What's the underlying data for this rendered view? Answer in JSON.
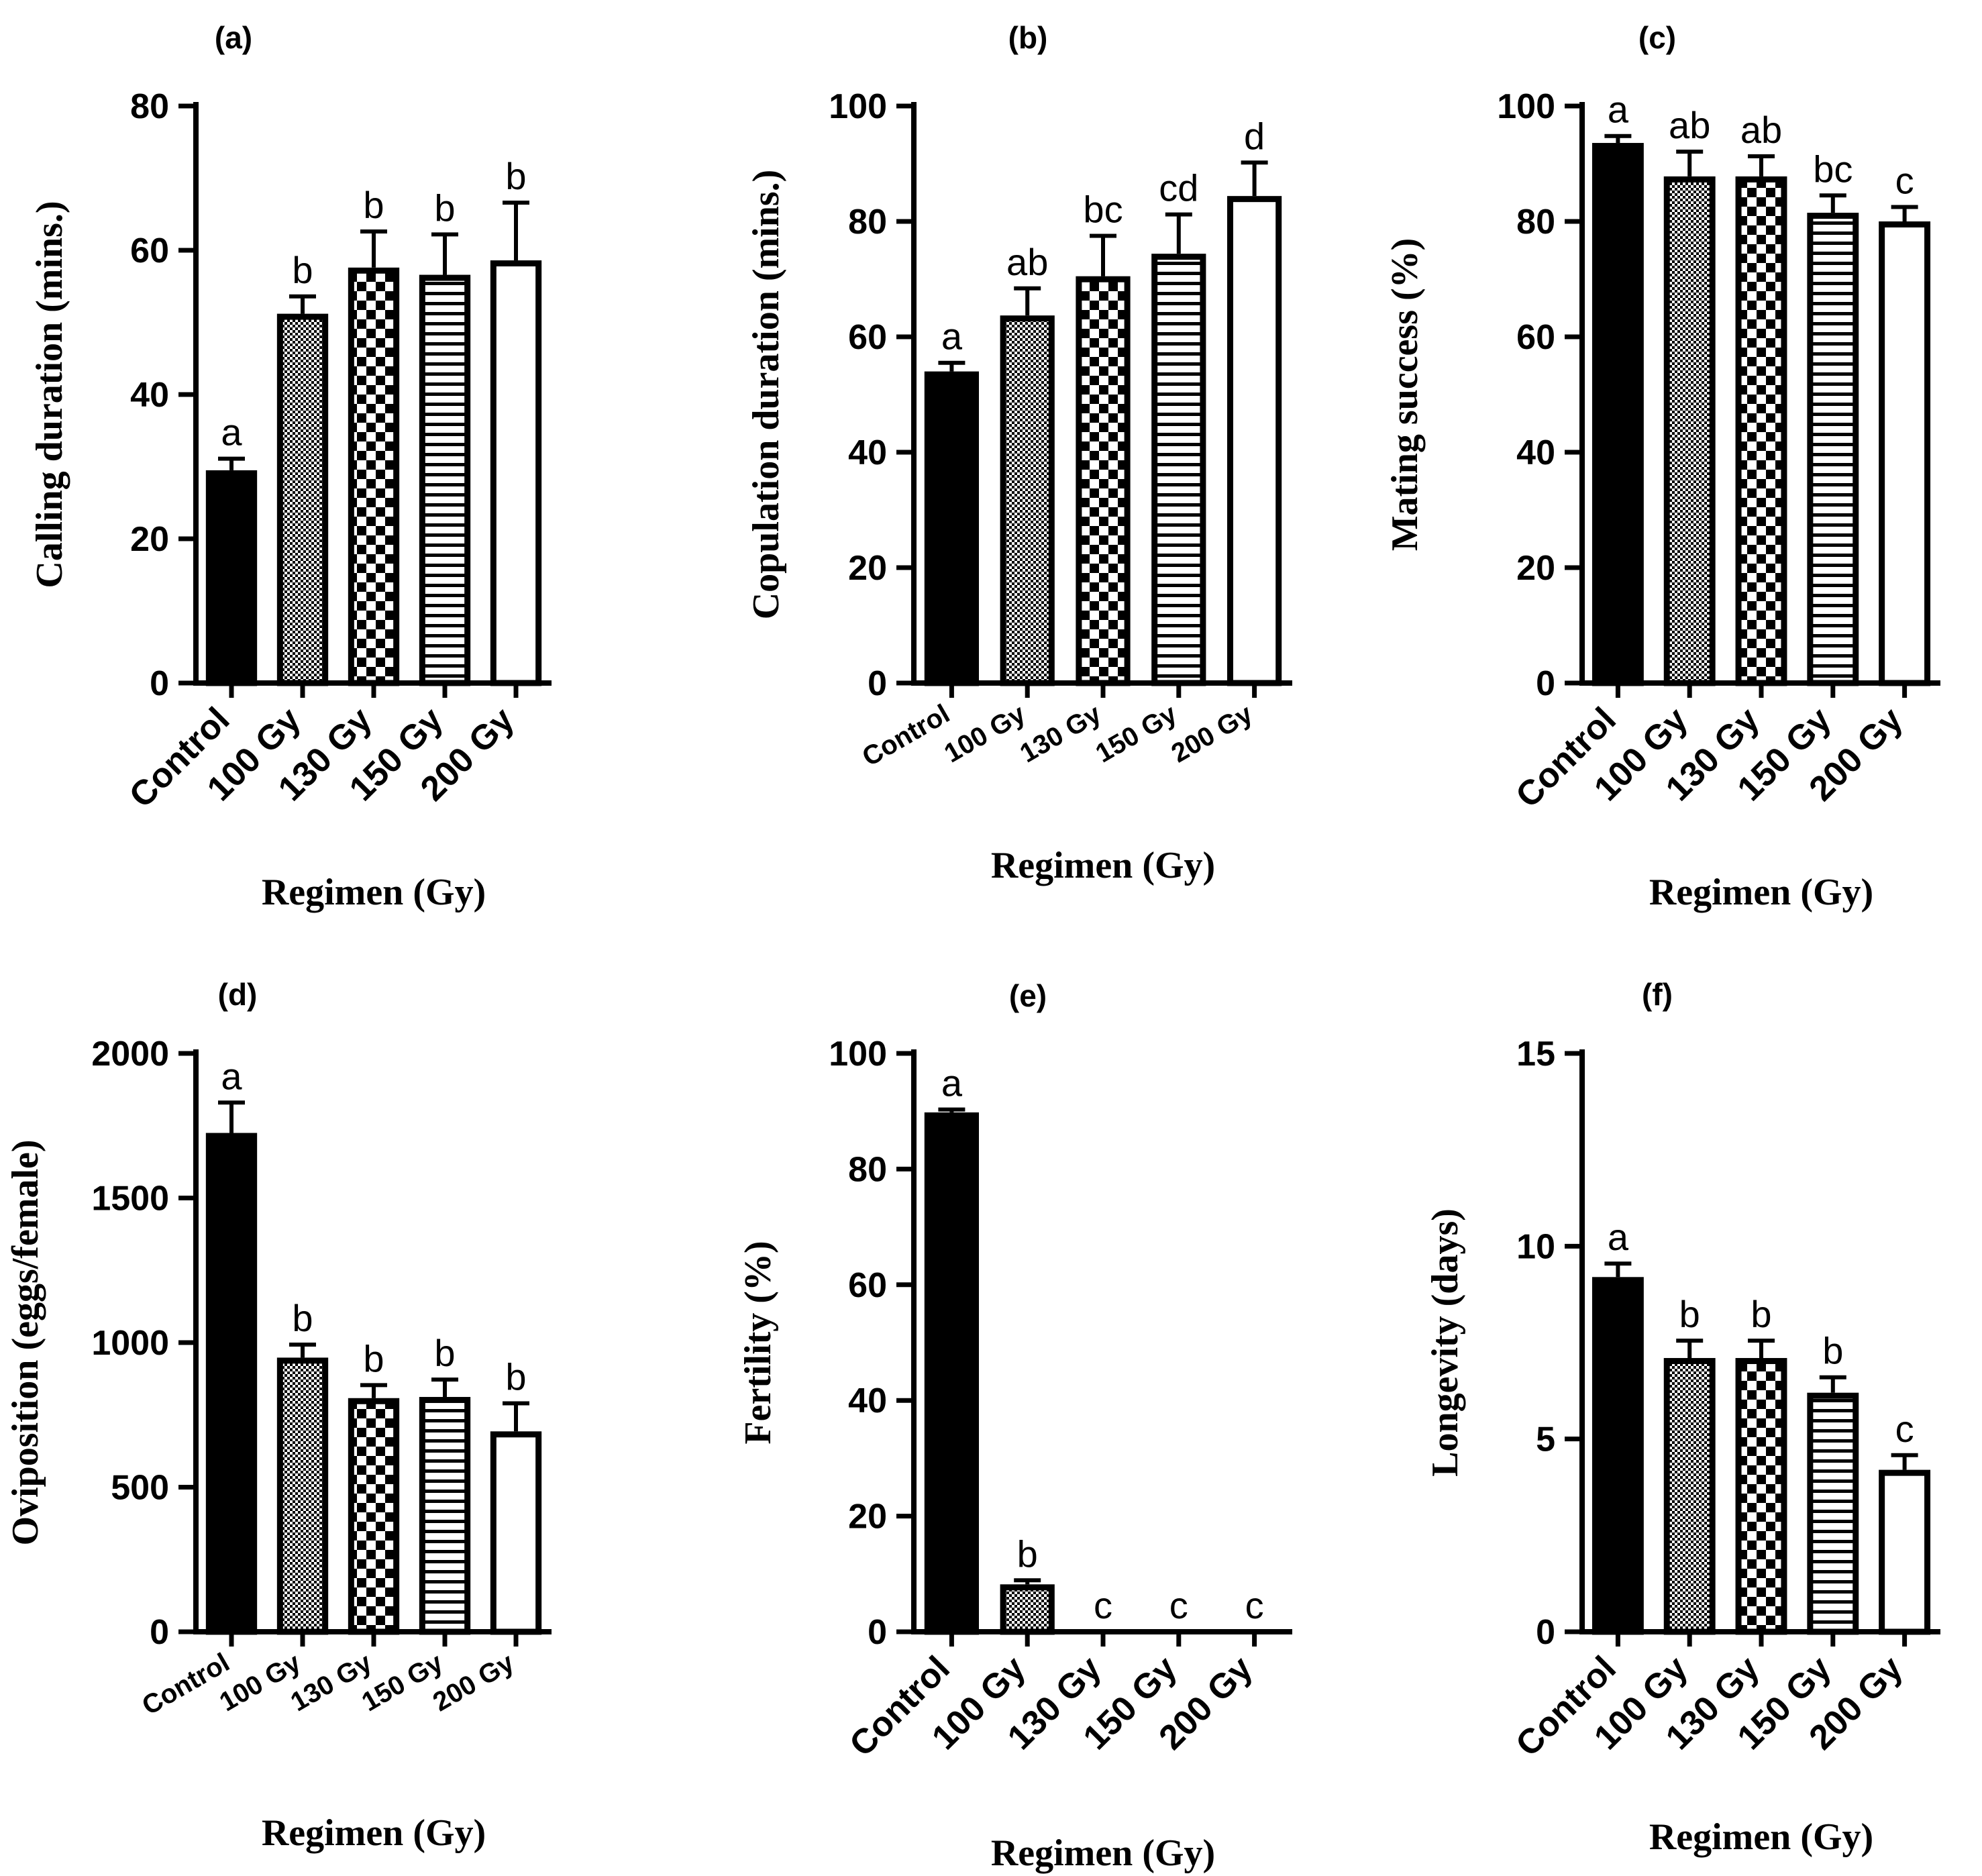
{
  "colors": {
    "ink": "#000000",
    "paper": "#ffffff"
  },
  "chart_data": [
    {
      "panel": "(a)",
      "type": "bar",
      "categories": [
        "Control",
        "100 Gy",
        "130 Gy",
        "150 Gy",
        "200 Gy"
      ],
      "values": [
        29.5,
        51.2,
        57.6,
        56.6,
        58.6
      ],
      "errors": [
        1.6,
        2.4,
        5.0,
        5.6,
        8.0
      ],
      "significance": [
        "a",
        "b",
        "b",
        "b",
        "b"
      ],
      "patterns": [
        "solid",
        "fine-check",
        "checker",
        "hstripe",
        "none"
      ],
      "xlabel": "Regimen (Gy)",
      "ylabel": "Calling duration (mins.)",
      "ylim": [
        0,
        80
      ],
      "yticks": [
        "0",
        "20",
        "40",
        "60",
        "80"
      ]
    },
    {
      "panel": "(b)",
      "type": "bar",
      "categories": [
        "Control",
        "100 Gy",
        "130 Gy",
        "150 Gy",
        "200 Gy"
      ],
      "values": [
        54,
        63.7,
        70.5,
        74.4,
        84.4
      ],
      "errors": [
        1.5,
        4.7,
        7.0,
        6.8,
        5.8
      ],
      "significance": [
        "a",
        "ab",
        "bc",
        "cd",
        "d"
      ],
      "patterns": [
        "solid",
        "fine-check",
        "checker",
        "hstripe",
        "none"
      ],
      "xlabel": "Regimen (Gy)",
      "ylabel": "Copulation duration (mins.)",
      "ylim": [
        0,
        100
      ],
      "yticks": [
        "0",
        "20",
        "40",
        "60",
        "80",
        "100"
      ]
    },
    {
      "panel": "(c)",
      "type": "bar",
      "categories": [
        "Control",
        "100 Gy",
        "130 Gy",
        "150 Gy",
        "200 Gy"
      ],
      "values": [
        93.6,
        87.8,
        87.8,
        81.5,
        80
      ],
      "errors": [
        1.2,
        4.3,
        3.5,
        3.0,
        2.5
      ],
      "significance": [
        "a",
        "ab",
        "ab",
        "bc",
        "c"
      ],
      "patterns": [
        "solid",
        "fine-check",
        "checker",
        "hstripe",
        "none"
      ],
      "xlabel": "Regimen (Gy)",
      "ylabel": "Mating success (%)",
      "ylim": [
        0,
        100
      ],
      "yticks": [
        "0",
        "20",
        "40",
        "60",
        "80",
        "100"
      ]
    },
    {
      "panel": "(d)",
      "type": "bar",
      "categories": [
        "Control",
        "100 Gy",
        "130 Gy",
        "150 Gy",
        "200 Gy"
      ],
      "values": [
        1725,
        948,
        808,
        812,
        693
      ],
      "errors": [
        105,
        45,
        45,
        60,
        97
      ],
      "significance": [
        "a",
        "b",
        "b",
        "b",
        "b"
      ],
      "patterns": [
        "solid",
        "fine-check",
        "checker",
        "hstripe",
        "none"
      ],
      "xlabel": "Regimen (Gy)",
      "ylabel": "Oviposition (eggs/female)",
      "ylim": [
        0,
        2000
      ],
      "yticks": [
        "0",
        "500",
        "1000",
        "1500",
        "2000"
      ]
    },
    {
      "panel": "(e)",
      "type": "bar",
      "categories": [
        "Control",
        "100 Gy",
        "130 Gy",
        "150 Gy",
        "200 Gy"
      ],
      "values": [
        89.8,
        8.2,
        0,
        0,
        0
      ],
      "errors": [
        0.5,
        0.7,
        0,
        0,
        0
      ],
      "significance": [
        "a",
        "b",
        "c",
        "c",
        "c"
      ],
      "patterns": [
        "solid",
        "fine-check",
        "checker",
        "hstripe",
        "none"
      ],
      "xlabel": "Regimen (Gy)",
      "ylabel": "Fertility (%)",
      "ylim": [
        0,
        100
      ],
      "yticks": [
        "0",
        "20",
        "40",
        "60",
        "80",
        "100"
      ]
    },
    {
      "panel": "(f)",
      "type": "bar",
      "categories": [
        "Control",
        "100 Gy",
        "130 Gy",
        "150 Gy",
        "200 Gy"
      ],
      "values": [
        9.2,
        7.1,
        7.1,
        6.2,
        4.2
      ],
      "errors": [
        0.35,
        0.45,
        0.45,
        0.4,
        0.38
      ],
      "significance": [
        "a",
        "b",
        "b",
        "b",
        "c"
      ],
      "patterns": [
        "solid",
        "fine-check",
        "checker",
        "hstripe",
        "none"
      ],
      "xlabel": "Regimen (Gy)",
      "ylabel": "Longevity (days)",
      "ylim": [
        0,
        15
      ],
      "yticks": [
        "0",
        "5",
        "10",
        "15"
      ]
    }
  ]
}
